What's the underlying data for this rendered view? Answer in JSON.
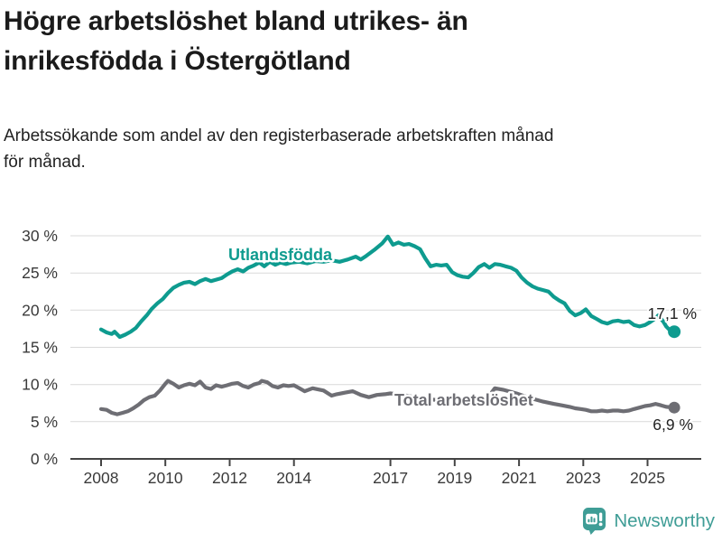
{
  "page": {
    "title": "Högre arbetslöshet bland utrikes- än\ninrikesfödda i Östergötland",
    "subtitle": "Arbetssökande som andel av den registerbaserade arbetskraften månad\nför månad."
  },
  "branding": {
    "name": "Newsworthy",
    "color": "#3f9d96",
    "icon": "speech-bubble-bar-chart"
  },
  "chart_data": {
    "type": "line",
    "title": "Högre arbetslöshet bland utrikes- än inrikesfödda i Östergötland",
    "subtitle": "Arbetssökande som andel av den registerbaserade arbetskraften månad för månad.",
    "xlabel": "",
    "ylabel": "",
    "unit": "%",
    "grid": true,
    "ylim": [
      0,
      30
    ],
    "xlim": [
      2007.05,
      2026.65
    ],
    "yticks": [
      {
        "value": 0,
        "label": "0 %"
      },
      {
        "value": 5,
        "label": "5 %"
      },
      {
        "value": 10,
        "label": "10 %"
      },
      {
        "value": 15,
        "label": "15 %"
      },
      {
        "value": 20,
        "label": "20 %"
      },
      {
        "value": 25,
        "label": "25 %"
      },
      {
        "value": 30,
        "label": "30 %"
      }
    ],
    "xticks": [
      {
        "value": 2008,
        "label": "2008"
      },
      {
        "value": 2010,
        "label": "2010"
      },
      {
        "value": 2012,
        "label": "2012"
      },
      {
        "value": 2014,
        "label": "2014"
      },
      {
        "value": 2017,
        "label": "2017"
      },
      {
        "value": 2019,
        "label": "2019"
      },
      {
        "value": 2021,
        "label": "2021"
      },
      {
        "value": 2023,
        "label": "2023"
      },
      {
        "value": 2025,
        "label": "2025"
      }
    ],
    "series": [
      {
        "name": "Utlandsfödda",
        "color": "#0e9b8f",
        "end_label": "17,1 %",
        "end_value": 17.1,
        "points": [
          [
            2008.0,
            17.4
          ],
          [
            2008.17,
            17.0
          ],
          [
            2008.33,
            16.8
          ],
          [
            2008.42,
            17.1
          ],
          [
            2008.58,
            16.4
          ],
          [
            2008.75,
            16.7
          ],
          [
            2008.92,
            17.1
          ],
          [
            2009.08,
            17.6
          ],
          [
            2009.25,
            18.5
          ],
          [
            2009.42,
            19.3
          ],
          [
            2009.58,
            20.2
          ],
          [
            2009.75,
            20.9
          ],
          [
            2009.92,
            21.5
          ],
          [
            2010.08,
            22.3
          ],
          [
            2010.25,
            23.0
          ],
          [
            2010.42,
            23.4
          ],
          [
            2010.58,
            23.7
          ],
          [
            2010.75,
            23.8
          ],
          [
            2010.92,
            23.5
          ],
          [
            2011.08,
            23.9
          ],
          [
            2011.25,
            24.2
          ],
          [
            2011.42,
            23.9
          ],
          [
            2011.58,
            24.1
          ],
          [
            2011.75,
            24.3
          ],
          [
            2011.92,
            24.8
          ],
          [
            2012.08,
            25.2
          ],
          [
            2012.25,
            25.5
          ],
          [
            2012.42,
            25.2
          ],
          [
            2012.58,
            25.7
          ],
          [
            2012.75,
            26.0
          ],
          [
            2012.92,
            26.4
          ],
          [
            2013.08,
            25.9
          ],
          [
            2013.25,
            26.5
          ],
          [
            2013.42,
            26.1
          ],
          [
            2013.58,
            26.4
          ],
          [
            2013.75,
            26.2
          ],
          [
            2013.92,
            26.4
          ],
          [
            2014.17,
            26.5
          ],
          [
            2014.42,
            26.3
          ],
          [
            2014.67,
            26.6
          ],
          [
            2014.92,
            26.5
          ],
          [
            2015.17,
            26.7
          ],
          [
            2015.42,
            26.5
          ],
          [
            2015.67,
            26.8
          ],
          [
            2015.92,
            27.2
          ],
          [
            2016.08,
            26.8
          ],
          [
            2016.25,
            27.3
          ],
          [
            2016.5,
            28.1
          ],
          [
            2016.75,
            29.0
          ],
          [
            2016.92,
            29.9
          ],
          [
            2017.08,
            28.8
          ],
          [
            2017.25,
            29.1
          ],
          [
            2017.42,
            28.8
          ],
          [
            2017.58,
            28.9
          ],
          [
            2017.75,
            28.6
          ],
          [
            2017.92,
            28.2
          ],
          [
            2018.08,
            27.0
          ],
          [
            2018.25,
            25.9
          ],
          [
            2018.42,
            26.1
          ],
          [
            2018.58,
            26.0
          ],
          [
            2018.75,
            26.1
          ],
          [
            2018.92,
            25.1
          ],
          [
            2019.08,
            24.7
          ],
          [
            2019.25,
            24.5
          ],
          [
            2019.42,
            24.4
          ],
          [
            2019.58,
            25.0
          ],
          [
            2019.75,
            25.8
          ],
          [
            2019.92,
            26.2
          ],
          [
            2020.08,
            25.7
          ],
          [
            2020.25,
            26.2
          ],
          [
            2020.42,
            26.1
          ],
          [
            2020.58,
            25.9
          ],
          [
            2020.75,
            25.7
          ],
          [
            2020.92,
            25.3
          ],
          [
            2021.08,
            24.4
          ],
          [
            2021.25,
            23.7
          ],
          [
            2021.42,
            23.2
          ],
          [
            2021.58,
            22.9
          ],
          [
            2021.75,
            22.7
          ],
          [
            2021.92,
            22.5
          ],
          [
            2022.08,
            21.8
          ],
          [
            2022.25,
            21.3
          ],
          [
            2022.42,
            20.9
          ],
          [
            2022.58,
            19.9
          ],
          [
            2022.75,
            19.3
          ],
          [
            2022.92,
            19.6
          ],
          [
            2023.08,
            20.1
          ],
          [
            2023.25,
            19.2
          ],
          [
            2023.42,
            18.8
          ],
          [
            2023.58,
            18.4
          ],
          [
            2023.75,
            18.2
          ],
          [
            2023.92,
            18.5
          ],
          [
            2024.08,
            18.6
          ],
          [
            2024.25,
            18.4
          ],
          [
            2024.42,
            18.5
          ],
          [
            2024.58,
            18.0
          ],
          [
            2024.75,
            17.8
          ],
          [
            2024.92,
            18.0
          ],
          [
            2025.08,
            18.4
          ],
          [
            2025.25,
            18.9
          ],
          [
            2025.33,
            19.3
          ],
          [
            2025.5,
            18.4
          ],
          [
            2025.58,
            17.8
          ],
          [
            2025.67,
            17.4
          ],
          [
            2025.83,
            17.1
          ]
        ]
      },
      {
        "name": "Total arbetslöshet",
        "color": "#6e6e74",
        "end_label": "6,9 %",
        "end_value": 6.9,
        "points": [
          [
            2008.0,
            6.7
          ],
          [
            2008.17,
            6.6
          ],
          [
            2008.33,
            6.2
          ],
          [
            2008.5,
            6.0
          ],
          [
            2008.67,
            6.2
          ],
          [
            2008.83,
            6.4
          ],
          [
            2009.0,
            6.8
          ],
          [
            2009.17,
            7.3
          ],
          [
            2009.33,
            7.9
          ],
          [
            2009.5,
            8.3
          ],
          [
            2009.67,
            8.5
          ],
          [
            2009.83,
            9.2
          ],
          [
            2010.0,
            10.1
          ],
          [
            2010.08,
            10.5
          ],
          [
            2010.25,
            10.1
          ],
          [
            2010.42,
            9.6
          ],
          [
            2010.58,
            9.9
          ],
          [
            2010.75,
            10.1
          ],
          [
            2010.92,
            9.9
          ],
          [
            2011.08,
            10.4
          ],
          [
            2011.25,
            9.6
          ],
          [
            2011.42,
            9.4
          ],
          [
            2011.58,
            9.9
          ],
          [
            2011.75,
            9.7
          ],
          [
            2011.92,
            9.9
          ],
          [
            2012.08,
            10.1
          ],
          [
            2012.25,
            10.2
          ],
          [
            2012.42,
            9.8
          ],
          [
            2012.58,
            9.6
          ],
          [
            2012.75,
            10.0
          ],
          [
            2012.92,
            10.2
          ],
          [
            2013.0,
            10.5
          ],
          [
            2013.17,
            10.3
          ],
          [
            2013.33,
            9.8
          ],
          [
            2013.5,
            9.6
          ],
          [
            2013.67,
            9.9
          ],
          [
            2013.83,
            9.8
          ],
          [
            2014.0,
            9.9
          ],
          [
            2014.17,
            9.5
          ],
          [
            2014.33,
            9.1
          ],
          [
            2014.58,
            9.5
          ],
          [
            2014.92,
            9.2
          ],
          [
            2015.17,
            8.5
          ],
          [
            2015.33,
            8.7
          ],
          [
            2015.58,
            8.9
          ],
          [
            2015.83,
            9.1
          ],
          [
            2016.08,
            8.6
          ],
          [
            2016.33,
            8.3
          ],
          [
            2016.58,
            8.6
          ],
          [
            2016.83,
            8.7
          ],
          [
            2017.0,
            8.8
          ],
          [
            2017.5,
            8.5
          ],
          [
            2018.0,
            8.1
          ],
          [
            2018.5,
            7.9
          ],
          [
            2019.0,
            7.7
          ],
          [
            2019.5,
            7.5
          ],
          [
            2019.92,
            7.6
          ],
          [
            2020.25,
            9.5
          ],
          [
            2020.5,
            9.3
          ],
          [
            2020.92,
            8.8
          ],
          [
            2021.33,
            8.2
          ],
          [
            2021.75,
            7.7
          ],
          [
            2022.08,
            7.4
          ],
          [
            2022.33,
            7.2
          ],
          [
            2022.58,
            7.0
          ],
          [
            2022.75,
            6.8
          ],
          [
            2022.92,
            6.7
          ],
          [
            2023.08,
            6.6
          ],
          [
            2023.25,
            6.4
          ],
          [
            2023.42,
            6.4
          ],
          [
            2023.58,
            6.5
          ],
          [
            2023.75,
            6.4
          ],
          [
            2023.92,
            6.5
          ],
          [
            2024.08,
            6.5
          ],
          [
            2024.25,
            6.4
          ],
          [
            2024.42,
            6.5
          ],
          [
            2024.58,
            6.7
          ],
          [
            2024.75,
            6.9
          ],
          [
            2024.92,
            7.1
          ],
          [
            2025.08,
            7.2
          ],
          [
            2025.25,
            7.4
          ],
          [
            2025.42,
            7.2
          ],
          [
            2025.58,
            7.0
          ],
          [
            2025.83,
            6.9
          ]
        ]
      }
    ],
    "legend_position": "inline-labels"
  }
}
